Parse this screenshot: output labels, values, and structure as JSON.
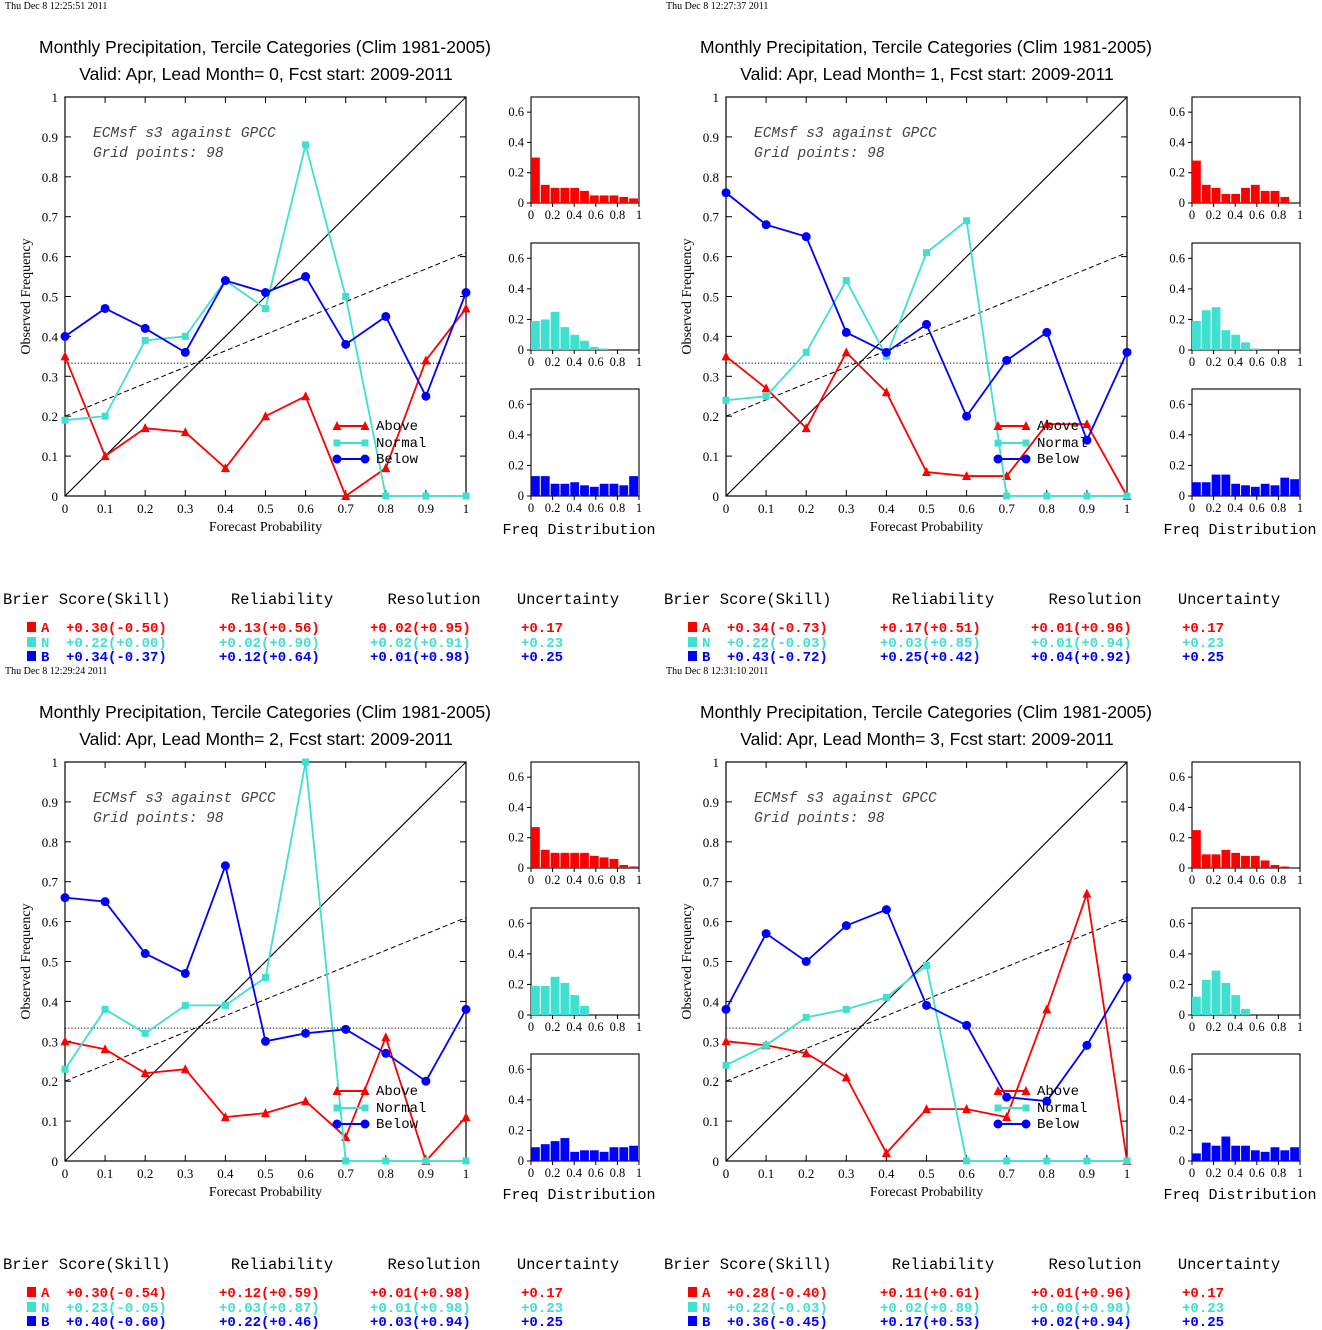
{
  "colors": {
    "above": "#ff0000",
    "normal": "#40e0d0",
    "below": "#0000ff",
    "axis": "#000000"
  },
  "labels": {
    "x_axis": "Forecast Probability",
    "y_axis": "Observed Frequency",
    "freq": "Freq Distribution",
    "legend": [
      "Above",
      "Normal",
      "Below"
    ],
    "annot_line1": "ECMsf s3 against GPCC",
    "annot_line2": "Grid points:    98",
    "table_headers": [
      "Brier Score(Skill)",
      "Reliability",
      "Resolution",
      "Uncertainty"
    ],
    "row_letters": [
      "A",
      "N",
      "B"
    ]
  },
  "chart_data": [
    {
      "type": "line",
      "timestamp": "Thu Dec  8 12:25:51 2011",
      "title": "Monthly Precipitation, Tercile Categories (Clim 1981-2005)",
      "subtitle": "Valid: Apr, Lead Month= 0, Fcst start: 2009-2011",
      "xlabel": "Forecast Probability",
      "ylabel": "Observed Frequency",
      "xlim": [
        0,
        1
      ],
      "ylim": [
        0,
        1
      ],
      "x": [
        0,
        0.1,
        0.2,
        0.3,
        0.4,
        0.5,
        0.6,
        0.7,
        0.8,
        0.9,
        1.0
      ],
      "clim_line": [
        [
          0,
          0.2
        ],
        [
          1,
          0.61
        ]
      ],
      "climatology": 0.333,
      "series": [
        {
          "name": "Above",
          "values": [
            0.35,
            0.1,
            0.17,
            0.16,
            0.07,
            0.2,
            0.25,
            0.0,
            0.07,
            0.34,
            0.47
          ]
        },
        {
          "name": "Normal",
          "values": [
            0.19,
            0.2,
            0.39,
            0.4,
            0.54,
            0.47,
            0.88,
            0.5,
            0.0,
            0.0,
            0.0
          ]
        },
        {
          "name": "Below",
          "values": [
            0.4,
            0.47,
            0.42,
            0.36,
            0.54,
            0.51,
            0.55,
            0.38,
            0.45,
            0.25,
            0.51
          ]
        }
      ],
      "histograms": {
        "ticks": [
          "0",
          "0.2",
          "0.4",
          "0.6",
          "0.8",
          "1"
        ],
        "yticks": [
          "0",
          "0.2",
          "0.4",
          "0.6"
        ],
        "Above": [
          0.3,
          0.12,
          0.1,
          0.1,
          0.1,
          0.08,
          0.05,
          0.05,
          0.05,
          0.04,
          0.03
        ],
        "Normal": [
          0.19,
          0.2,
          0.25,
          0.15,
          0.1,
          0.06,
          0.02,
          0.01,
          0.0,
          0.0,
          0.0
        ],
        "Below": [
          0.13,
          0.13,
          0.08,
          0.08,
          0.09,
          0.07,
          0.06,
          0.08,
          0.08,
          0.07,
          0.13
        ]
      },
      "scores": [
        [
          "+0.30(-0.50)",
          "+0.13(+0.56)",
          "+0.02(+0.95)",
          "+0.17"
        ],
        [
          "+0.22(+0.00)",
          "+0.02(+0.90)",
          "+0.02(+0.91)",
          "+0.23"
        ],
        [
          "+0.34(-0.37)",
          "+0.12(+0.64)",
          "+0.01(+0.98)",
          "+0.25"
        ]
      ]
    },
    {
      "type": "line",
      "timestamp": "Thu Dec  8 12:27:37 2011",
      "title": "Monthly Precipitation, Tercile Categories (Clim 1981-2005)",
      "subtitle": "Valid: Apr, Lead Month= 1, Fcst start: 2009-2011",
      "xlabel": "Forecast Probability",
      "ylabel": "Observed Frequency",
      "xlim": [
        0,
        1
      ],
      "ylim": [
        0,
        1
      ],
      "x": [
        0,
        0.1,
        0.2,
        0.3,
        0.4,
        0.5,
        0.6,
        0.7,
        0.8,
        0.9,
        1.0
      ],
      "clim_line": [
        [
          0,
          0.2
        ],
        [
          1,
          0.61
        ]
      ],
      "climatology": 0.333,
      "series": [
        {
          "name": "Above",
          "values": [
            0.35,
            0.27,
            0.17,
            0.36,
            0.26,
            0.06,
            0.05,
            0.05,
            0.18,
            0.18,
            0.0
          ]
        },
        {
          "name": "Normal",
          "values": [
            0.24,
            0.25,
            0.36,
            0.54,
            0.35,
            0.61,
            0.69,
            0.0,
            0.0,
            0.0,
            0.0
          ]
        },
        {
          "name": "Below",
          "values": [
            0.76,
            0.68,
            0.65,
            0.41,
            0.36,
            0.43,
            0.2,
            0.34,
            0.41,
            0.14,
            0.36
          ]
        }
      ],
      "histograms": {
        "ticks": [
          "0",
          "0.2",
          "0.4",
          "0.6",
          "0.8",
          "1"
        ],
        "yticks": [
          "0",
          "0.2",
          "0.4",
          "0.6"
        ],
        "Above": [
          0.28,
          0.12,
          0.1,
          0.06,
          0.06,
          0.1,
          0.12,
          0.08,
          0.08,
          0.04,
          0.0
        ],
        "Normal": [
          0.19,
          0.26,
          0.28,
          0.13,
          0.1,
          0.05,
          0.01,
          0.0,
          0.0,
          0.0,
          0.0
        ],
        "Below": [
          0.09,
          0.09,
          0.14,
          0.14,
          0.08,
          0.07,
          0.06,
          0.08,
          0.07,
          0.12,
          0.11
        ]
      },
      "scores": [
        [
          "+0.34(-0.73)",
          "+0.17(+0.51)",
          "+0.01(+0.96)",
          "+0.17"
        ],
        [
          "+0.22(-0.03)",
          "+0.03(+0.85)",
          "+0.01(+0.94)",
          "+0.23"
        ],
        [
          "+0.43(-0.72)",
          "+0.25(+0.42)",
          "+0.04(+0.92)",
          "+0.25"
        ]
      ]
    },
    {
      "type": "line",
      "timestamp": "Thu Dec  8 12:29:24 2011",
      "title": "Monthly Precipitation, Tercile Categories (Clim 1981-2005)",
      "subtitle": "Valid: Apr, Lead Month= 2, Fcst start: 2009-2011",
      "xlabel": "Forecast Probability",
      "ylabel": "Observed Frequency",
      "xlim": [
        0,
        1
      ],
      "ylim": [
        0,
        1
      ],
      "x": [
        0,
        0.1,
        0.2,
        0.3,
        0.4,
        0.5,
        0.6,
        0.7,
        0.8,
        0.9,
        1.0
      ],
      "clim_line": [
        [
          0,
          0.2
        ],
        [
          1,
          0.61
        ]
      ],
      "climatology": 0.333,
      "series": [
        {
          "name": "Above",
          "values": [
            0.3,
            0.28,
            0.22,
            0.23,
            0.11,
            0.12,
            0.15,
            0.06,
            0.31,
            0.0,
            0.11
          ]
        },
        {
          "name": "Normal",
          "values": [
            0.23,
            0.38,
            0.32,
            0.39,
            0.39,
            0.46,
            1.0,
            0.0,
            0.0,
            0.0,
            0.0
          ]
        },
        {
          "name": "Below",
          "values": [
            0.66,
            0.65,
            0.52,
            0.47,
            0.74,
            0.3,
            0.32,
            0.33,
            0.27,
            0.2,
            0.38
          ]
        }
      ],
      "histograms": {
        "ticks": [
          "0",
          "0.2",
          "0.4",
          "0.6",
          "0.8",
          "1"
        ],
        "yticks": [
          "0",
          "0.2",
          "0.4",
          "0.6"
        ],
        "Above": [
          0.27,
          0.12,
          0.1,
          0.1,
          0.1,
          0.1,
          0.08,
          0.07,
          0.06,
          0.02,
          0.01
        ],
        "Normal": [
          0.19,
          0.19,
          0.25,
          0.21,
          0.13,
          0.06,
          0.0,
          0.0,
          0.0,
          0.0,
          0.0
        ],
        "Below": [
          0.09,
          0.11,
          0.13,
          0.15,
          0.06,
          0.07,
          0.07,
          0.06,
          0.09,
          0.09,
          0.1
        ]
      },
      "scores": [
        [
          "+0.30(-0.54)",
          "+0.12(+0.59)",
          "+0.01(+0.98)",
          "+0.17"
        ],
        [
          "+0.23(-0.05)",
          "+0.03(+0.87)",
          "+0.01(+0.98)",
          "+0.23"
        ],
        [
          "+0.40(-0.60)",
          "+0.22(+0.46)",
          "+0.03(+0.94)",
          "+0.25"
        ]
      ]
    },
    {
      "type": "line",
      "timestamp": "Thu Dec  8 12:31:10 2011",
      "title": "Monthly Precipitation, Tercile Categories (Clim 1981-2005)",
      "subtitle": "Valid: Apr, Lead Month= 3, Fcst start: 2009-2011",
      "xlabel": "Forecast Probability",
      "ylabel": "Observed Frequency",
      "xlim": [
        0,
        1
      ],
      "ylim": [
        0,
        1
      ],
      "x": [
        0,
        0.1,
        0.2,
        0.3,
        0.4,
        0.5,
        0.6,
        0.7,
        0.8,
        0.9,
        1.0
      ],
      "clim_line": [
        [
          0,
          0.2
        ],
        [
          1,
          0.61
        ]
      ],
      "climatology": 0.333,
      "series": [
        {
          "name": "Above",
          "values": [
            0.3,
            0.29,
            0.27,
            0.21,
            0.02,
            0.13,
            0.13,
            0.11,
            0.38,
            0.67,
            0.0
          ]
        },
        {
          "name": "Normal",
          "values": [
            0.24,
            0.29,
            0.36,
            0.38,
            0.41,
            0.49,
            0.0,
            0.0,
            0.0,
            0.0,
            0.0
          ]
        },
        {
          "name": "Below",
          "values": [
            0.38,
            0.57,
            0.5,
            0.59,
            0.63,
            0.39,
            0.34,
            0.16,
            0.15,
            0.29,
            0.46
          ]
        }
      ],
      "histograms": {
        "ticks": [
          "0",
          "0.2",
          "0.4",
          "0.6",
          "0.8",
          "1"
        ],
        "yticks": [
          "0",
          "0.2",
          "0.4",
          "0.6"
        ],
        "Above": [
          0.25,
          0.09,
          0.09,
          0.12,
          0.1,
          0.08,
          0.08,
          0.05,
          0.02,
          0.01,
          0.0
        ],
        "Normal": [
          0.12,
          0.23,
          0.29,
          0.21,
          0.13,
          0.04,
          0.0,
          0.0,
          0.0,
          0.0,
          0.0
        ],
        "Below": [
          0.05,
          0.12,
          0.1,
          0.16,
          0.1,
          0.1,
          0.07,
          0.06,
          0.09,
          0.07,
          0.09
        ]
      },
      "scores": [
        [
          "+0.28(-0.40)",
          "+0.11(+0.61)",
          "+0.01(+0.96)",
          "+0.17"
        ],
        [
          "+0.22(-0.03)",
          "+0.02(+0.89)",
          "+0.00(+0.98)",
          "+0.23"
        ],
        [
          "+0.36(-0.45)",
          "+0.17(+0.53)",
          "+0.02(+0.94)",
          "+0.25"
        ]
      ]
    }
  ]
}
